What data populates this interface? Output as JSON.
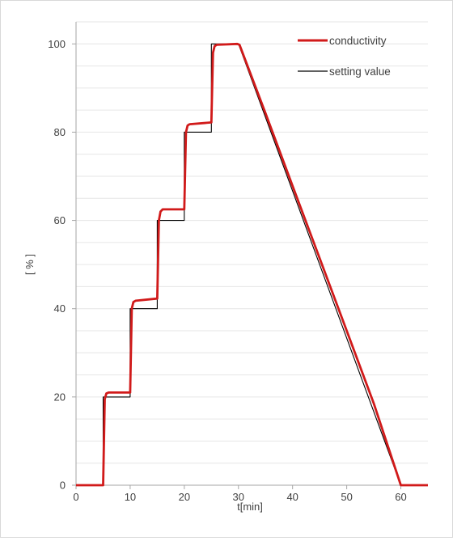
{
  "chart_data": {
    "type": "line",
    "xlabel": "t[min]",
    "ylabel": "[ % ]",
    "xlim": [
      0,
      65
    ],
    "ylim": [
      0,
      105
    ],
    "x_ticks": [
      0,
      10,
      20,
      30,
      40,
      50,
      60
    ],
    "y_ticks": [
      0,
      20,
      40,
      60,
      80,
      100
    ],
    "grid": "horizontal minor gridlines every 5 units",
    "legend_placement": "top-right",
    "colors": {
      "conductivity": "#d11a1a",
      "setting_value": "#000000",
      "grid": "#e6e6e6",
      "axis": "#a6a6a6"
    },
    "series": [
      {
        "name": "conductivity",
        "x": [
          0,
          5,
          5.3,
          5.6,
          6,
          10,
          10.3,
          10.6,
          11,
          15,
          15.3,
          15.6,
          16,
          20,
          20.3,
          20.6,
          21,
          25,
          25.3,
          25.6,
          26,
          29.8,
          30.2,
          35,
          40,
          45,
          50,
          55,
          60,
          65
        ],
        "y": [
          0,
          0,
          19.5,
          20.8,
          21,
          21,
          40,
          41.5,
          41.8,
          42.3,
          60,
          62,
          62.5,
          62.5,
          80,
          81.5,
          81.8,
          82.2,
          98,
          99.5,
          99.8,
          100,
          99.8,
          84.3,
          67.8,
          51.4,
          35,
          18.5,
          0,
          0
        ]
      },
      {
        "name": "setting value",
        "x": [
          0,
          5,
          5,
          10,
          10,
          15,
          15,
          20,
          20,
          25,
          25,
          30,
          60,
          65
        ],
        "y": [
          0,
          0,
          20,
          20,
          40,
          40,
          60,
          60,
          80,
          80,
          100,
          100,
          0,
          0
        ]
      }
    ]
  }
}
